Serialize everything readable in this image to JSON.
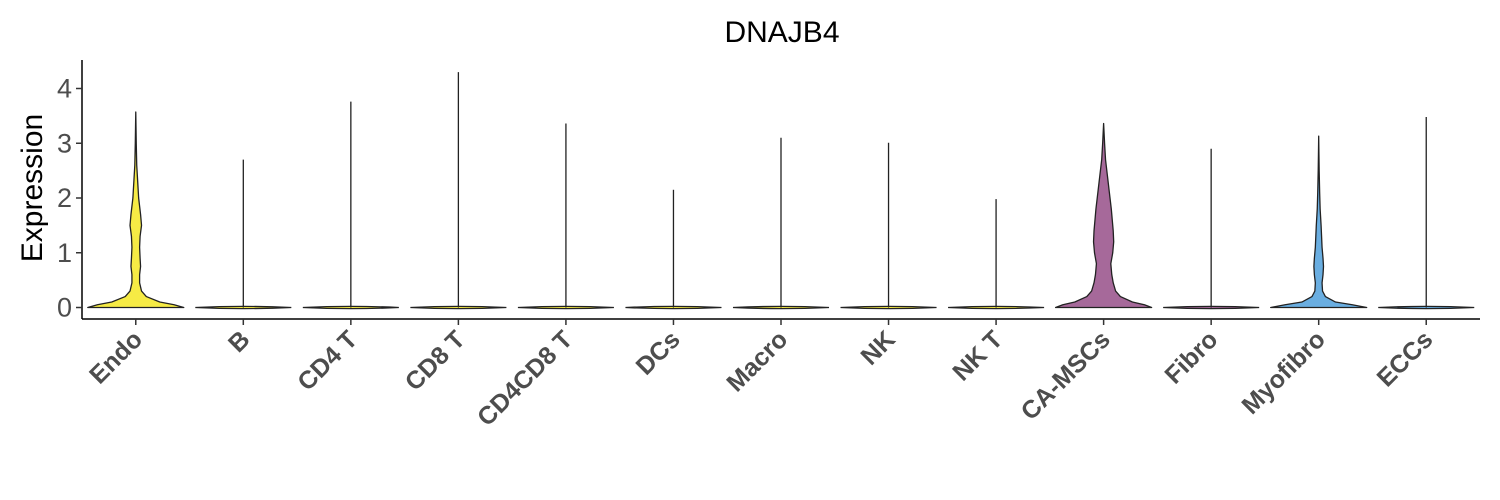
{
  "chart_data": {
    "type": "violin",
    "title": "DNAJB4",
    "xlabel": "",
    "ylabel": "Expression",
    "ylim": [
      -0.2,
      4.5
    ],
    "yticks": [
      0,
      1,
      2,
      3,
      4
    ],
    "grid": false,
    "legend": "none",
    "categories": [
      "Endo",
      "B",
      "CD4 T",
      "CD8 T",
      "CD4CD8 T",
      "DCs",
      "Macro",
      "NK",
      "NK T",
      "CA-MSCs",
      "Fibro",
      "Myofibro",
      "ECCs"
    ],
    "max_values": [
      3.57,
      2.7,
      3.76,
      4.3,
      3.36,
      2.15,
      3.1,
      3.01,
      1.98,
      3.36,
      2.9,
      3.13,
      3.48
    ],
    "fill_colors": [
      "#F6EB45",
      "#F6EB45",
      "#F6EB45",
      "#F6EB45",
      "#F6EB45",
      "#F6EB45",
      "#F6EB45",
      "#F6EB45",
      "#F6EB45",
      "#A6699A",
      "#A6699A",
      "#6AAEE1",
      "#6AAEE1"
    ],
    "density_profiles": [
      {
        "y": [
          0,
          0.05,
          0.1,
          0.2,
          0.3,
          0.45,
          0.6,
          0.75,
          0.9,
          1.1,
          1.3,
          1.5,
          1.7,
          2.0,
          2.3,
          2.6,
          3.0,
          3.57
        ],
        "w": [
          1.0,
          0.8,
          0.5,
          0.22,
          0.12,
          0.08,
          0.08,
          0.1,
          0.09,
          0.08,
          0.09,
          0.12,
          0.1,
          0.06,
          0.04,
          0.02,
          0.01,
          0
        ]
      },
      null,
      null,
      null,
      null,
      null,
      null,
      null,
      null,
      {
        "y": [
          0,
          0.05,
          0.1,
          0.2,
          0.3,
          0.45,
          0.6,
          0.8,
          1.0,
          1.2,
          1.4,
          1.6,
          1.8,
          2.1,
          2.4,
          2.7,
          3.0,
          3.36
        ],
        "w": [
          1.0,
          0.85,
          0.6,
          0.35,
          0.25,
          0.2,
          0.17,
          0.15,
          0.19,
          0.21,
          0.2,
          0.18,
          0.16,
          0.12,
          0.08,
          0.04,
          0.02,
          0
        ]
      },
      null,
      {
        "y": [
          0,
          0.05,
          0.1,
          0.2,
          0.3,
          0.45,
          0.6,
          0.75,
          0.9,
          1.1,
          1.3,
          1.5,
          1.8,
          2.1,
          2.5,
          2.8,
          3.13
        ],
        "w": [
          1.0,
          0.7,
          0.35,
          0.14,
          0.08,
          0.07,
          0.09,
          0.1,
          0.09,
          0.07,
          0.06,
          0.05,
          0.03,
          0.02,
          0.01,
          0.005,
          0
        ]
      },
      null
    ]
  }
}
